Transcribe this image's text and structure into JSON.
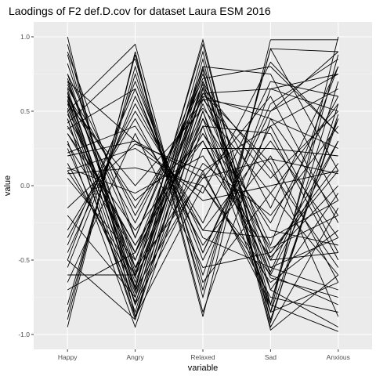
{
  "chart_data": {
    "type": "line",
    "title": "Laodings of F2 def.D.cov for dataset Laura ESM 2016",
    "xlabel": "variable",
    "ylabel": "value",
    "categories": [
      "Happy",
      "Angry",
      "Relaxed",
      "Sad",
      "Anxious"
    ],
    "ylim": [
      -1.1,
      1.1
    ],
    "yticks": [
      -1.0,
      -0.5,
      0.0,
      0.5,
      1.0
    ],
    "ytick_labels": [
      "-1.0",
      "-0.5",
      "0.0",
      "0.5",
      "1.0"
    ],
    "grid": true,
    "legend": "none",
    "line_color": "#000000",
    "panel_color": "#ebebeb",
    "grid_color": "#ffffff",
    "series": [
      {
        "values": [
          0.75,
          -0.62,
          0.98,
          -0.85,
          1.0
        ]
      },
      {
        "values": [
          0.72,
          -0.58,
          0.95,
          -0.8,
          0.88
        ]
      },
      {
        "values": [
          0.65,
          -0.7,
          0.9,
          -0.92,
          0.55
        ]
      },
      {
        "values": [
          0.6,
          -0.75,
          0.85,
          -0.95,
          -0.15
        ]
      },
      {
        "values": [
          0.55,
          -0.8,
          0.78,
          -0.97,
          -0.6
        ]
      },
      {
        "values": [
          0.5,
          -0.85,
          0.7,
          -0.6,
          0.3
        ]
      },
      {
        "values": [
          0.45,
          -0.9,
          0.65,
          -0.55,
          -0.35
        ]
      },
      {
        "values": [
          0.7,
          -0.5,
          0.6,
          -0.4,
          0.8
        ]
      },
      {
        "values": [
          0.62,
          -0.65,
          0.55,
          -0.45,
          0.1
        ]
      },
      {
        "values": [
          0.58,
          -0.6,
          0.5,
          -0.62,
          -0.75
        ]
      },
      {
        "values": [
          0.52,
          -0.55,
          0.45,
          -0.7,
          -0.95
        ]
      },
      {
        "values": [
          0.48,
          -0.45,
          0.4,
          -0.85,
          0.45
        ]
      },
      {
        "values": [
          0.4,
          -0.4,
          0.35,
          -0.25,
          0.6
        ]
      },
      {
        "values": [
          0.35,
          -0.3,
          0.3,
          -0.5,
          -0.45
        ]
      },
      {
        "values": [
          0.68,
          -0.35,
          0.72,
          0.8,
          0.35
        ]
      },
      {
        "values": [
          0.63,
          -0.68,
          0.8,
          0.75,
          -0.1
        ]
      },
      {
        "values": [
          0.57,
          -0.72,
          0.62,
          0.65,
          0.75
        ]
      },
      {
        "values": [
          0.45,
          -0.88,
          0.58,
          0.5,
          0.9
        ]
      },
      {
        "values": [
          0.3,
          -0.95,
          0.4,
          0.35,
          -0.5
        ]
      },
      {
        "values": [
          0.25,
          -0.78,
          0.25,
          0.25,
          0.2
        ]
      },
      {
        "values": [
          0.1,
          -0.6,
          0.15,
          -0.2,
          0.4
        ]
      },
      {
        "values": [
          0.1,
          0.25,
          -0.05,
          0.83,
          0.35
        ]
      },
      {
        "values": [
          0.2,
          0.3,
          0.05,
          0.6,
          -0.25
        ]
      },
      {
        "values": [
          -0.15,
          0.28,
          0.1,
          -0.8,
          -0.98
        ]
      },
      {
        "values": [
          0.08,
          0.12,
          0.0,
          -0.6,
          -0.8
        ]
      },
      {
        "values": [
          0.75,
          -0.2,
          0.62,
          0.15,
          -0.88
        ]
      },
      {
        "values": [
          0.7,
          0.3,
          -0.1,
          0.0,
          0.1
        ]
      },
      {
        "values": [
          0.66,
          -0.15,
          0.58,
          0.05,
          0.5
        ]
      },
      {
        "values": [
          0.55,
          0.0,
          0.52,
          -0.05,
          -0.6
        ]
      },
      {
        "values": [
          0.5,
          0.95,
          -0.75,
          0.92,
          0.1
        ]
      },
      {
        "values": [
          0.42,
          0.85,
          -0.65,
          -0.05,
          0.55
        ]
      },
      {
        "values": [
          -0.9,
          0.88,
          -0.88,
          0.98,
          0.98
        ]
      },
      {
        "values": [
          -0.85,
          0.8,
          -0.7,
          0.92,
          0.9
        ]
      },
      {
        "values": [
          -0.95,
          0.9,
          -0.85,
          0.45,
          -0.2
        ]
      },
      {
        "values": [
          -0.8,
          0.75,
          -0.6,
          0.65,
          0.5
        ]
      },
      {
        "values": [
          -0.5,
          0.7,
          -0.45,
          0.55,
          0.85
        ]
      },
      {
        "values": [
          -0.4,
          0.65,
          -0.5,
          0.4,
          -0.45
        ]
      },
      {
        "values": [
          -0.55,
          0.6,
          -0.35,
          -0.55,
          -0.7
        ]
      },
      {
        "values": [
          -0.45,
          0.55,
          -0.3,
          -0.35,
          -0.1
        ]
      },
      {
        "values": [
          -0.35,
          0.5,
          -0.25,
          0.7,
          0.6
        ]
      },
      {
        "values": [
          -0.3,
          0.45,
          -0.4,
          0.2,
          -0.65
        ]
      },
      {
        "values": [
          -0.65,
          0.35,
          -0.55,
          -0.45,
          0.15
        ]
      },
      {
        "values": [
          1.0,
          -0.88,
          0.0,
          -0.65,
          -0.3
        ]
      },
      {
        "values": [
          0.95,
          -0.8,
          0.1,
          0.4,
          0.65
        ]
      },
      {
        "values": [
          0.88,
          -0.7,
          0.08,
          -0.75,
          -0.85
        ]
      },
      {
        "values": [
          0.82,
          -0.55,
          0.05,
          0.18,
          0.08
        ]
      },
      {
        "values": [
          -0.5,
          -0.9,
          0.5,
          -0.8,
          0.7
        ]
      },
      {
        "values": [
          -0.2,
          -0.75,
          0.45,
          -0.3,
          -0.4
        ]
      },
      {
        "values": [
          0.15,
          -0.68,
          0.7,
          -0.15,
          0.8
        ]
      },
      {
        "values": [
          0.05,
          -0.5,
          0.66,
          0.1,
          -0.55
        ]
      },
      {
        "values": [
          0.28,
          -0.45,
          0.6,
          0.45,
          0.25
        ]
      },
      {
        "values": [
          0.35,
          -0.4,
          0.35,
          -0.42,
          -0.2
        ]
      },
      {
        "values": [
          0.9,
          -0.35,
          0.78,
          -0.9,
          0.48
        ]
      },
      {
        "values": [
          0.6,
          -0.25,
          0.68,
          -0.85,
          -0.65
        ]
      },
      {
        "values": [
          -0.6,
          -0.6,
          0.8,
          -0.5,
          0.3
        ]
      },
      {
        "values": [
          -0.7,
          -0.45,
          0.75,
          -0.7,
          -0.05
        ]
      },
      {
        "values": [
          0.38,
          0.65,
          -0.45,
          0.5,
          0.75
        ]
      },
      {
        "values": [
          0.22,
          0.4,
          -0.3,
          0.3,
          -0.35
        ]
      },
      {
        "values": [
          0.12,
          -0.05,
          0.2,
          -0.48,
          0.0
        ]
      },
      {
        "values": [
          0.6,
          -0.1,
          0.3,
          -0.58,
          0.45
        ]
      }
    ]
  }
}
